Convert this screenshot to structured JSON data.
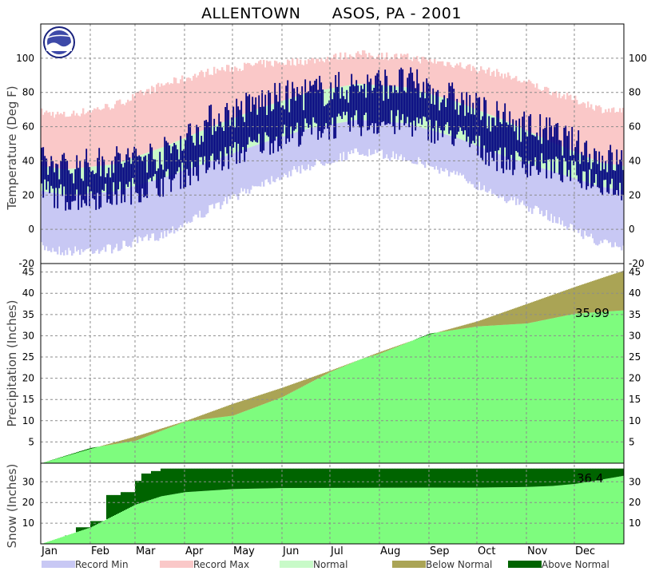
{
  "chart_data": {
    "title": "ALLENTOWN      ASOS, PA - 2001",
    "months": [
      "Jan",
      "Feb",
      "Mar",
      "Apr",
      "May",
      "Jun",
      "Jul",
      "Aug",
      "Sep",
      "Oct",
      "Nov",
      "Dec"
    ],
    "legend": [
      {
        "label": "Record Min",
        "color": "#c8c8f4"
      },
      {
        "label": "Record Max",
        "color": "#fac8c8"
      },
      {
        "label": "Normal",
        "color": "#c8fac8"
      },
      {
        "label": "Below Normal",
        "color": "#aaa455"
      },
      {
        "label": "Above Normal",
        "color": "#006400"
      }
    ],
    "panels": [
      {
        "id": "temperature",
        "type": "bar",
        "ylabel": "Temperature (Deg F)",
        "ylim": [
          -20,
          120
        ],
        "yticks": [
          -20,
          0,
          20,
          40,
          60,
          80,
          100
        ],
        "series": [
          {
            "name": "Record Min",
            "color": "#c8c8f4"
          },
          {
            "name": "Record Max",
            "color": "#fac8c8"
          },
          {
            "name": "Normal",
            "color": "#c8fac8"
          },
          {
            "name": "Observed",
            "color": "#000080"
          }
        ],
        "monthly_approx": {
          "record_min": [
            -10,
            -8,
            0,
            15,
            30,
            40,
            48,
            45,
            35,
            22,
            10,
            -5
          ],
          "record_max": [
            66,
            72,
            84,
            92,
            96,
            98,
            102,
            100,
            96,
            90,
            80,
            70
          ],
          "normal_low": [
            20,
            22,
            30,
            40,
            50,
            59,
            64,
            62,
            54,
            43,
            34,
            25
          ],
          "normal_high": [
            35,
            38,
            48,
            60,
            71,
            80,
            85,
            83,
            75,
            64,
            51,
            39
          ],
          "observed_low": [
            18,
            20,
            27,
            38,
            50,
            58,
            62,
            62,
            55,
            40,
            36,
            28
          ],
          "observed_high": [
            36,
            40,
            44,
            64,
            74,
            80,
            84,
            86,
            76,
            64,
            56,
            42
          ]
        }
      },
      {
        "id": "precipitation",
        "type": "area",
        "ylabel": "Precipitation (Inches)",
        "ylim": [
          0,
          47
        ],
        "yticks": [
          5,
          10,
          15,
          20,
          25,
          30,
          35,
          40,
          45
        ],
        "annotation": "35.99",
        "normal_cumulative_x": [
          0,
          31,
          59,
          90,
          120,
          151,
          181,
          212,
          243,
          273,
          304,
          334,
          365
        ],
        "normal_cumulative_y": [
          0,
          3.4,
          6.3,
          9.9,
          14.0,
          17.8,
          21.8,
          26.2,
          30.3,
          33.4,
          37.5,
          41.5,
          45.4
        ],
        "actual_cumulative_x": [
          0,
          31,
          59,
          90,
          120,
          151,
          181,
          200,
          212,
          243,
          273,
          304,
          334,
          365
        ],
        "actual_cumulative_y": [
          0,
          3.6,
          5.3,
          9.8,
          11.2,
          15.6,
          21.5,
          24.5,
          25.8,
          30.5,
          32.2,
          32.9,
          35.2,
          35.99
        ]
      },
      {
        "id": "snow",
        "type": "area",
        "ylabel": "Snow (Inches)",
        "ylim": [
          0,
          39
        ],
        "yticks": [
          10,
          20,
          30
        ],
        "annotation": "36.4",
        "normal_cumulative_x": [
          0,
          31,
          59,
          75,
          90,
          120,
          151,
          243,
          273,
          304,
          320,
          334,
          350,
          365
        ],
        "normal_cumulative_y": [
          0,
          8,
          19,
          23,
          25,
          26.5,
          27,
          27.2,
          27.2,
          27.5,
          28,
          29,
          31,
          33
        ],
        "actual_steps_x": [
          0,
          15,
          22,
          31,
          41,
          50,
          59,
          63,
          69,
          75,
          365
        ],
        "actual_steps_y": [
          0,
          4,
          8,
          11,
          23.6,
          25,
          30.5,
          34,
          35.2,
          36.4,
          36.4
        ]
      }
    ]
  }
}
